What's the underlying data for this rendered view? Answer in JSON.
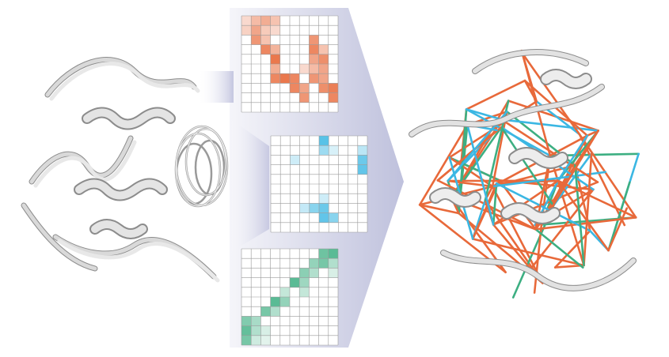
{
  "colors": {
    "orange": "#e8693a",
    "blue": "#3bb7e3",
    "green": "#3daf82",
    "cartoon": "#d9d9d9",
    "cartoon_edge": "#8c8c8c",
    "funnel_dark": "#a9acd1",
    "funnel_light": "#e6e7f2",
    "grid_line": "#9a9a9a"
  },
  "left_panel": {
    "icon": "protein-ensemble-cartoon"
  },
  "right_panel": {
    "icon": "protein-with-contact-network"
  },
  "matrices": [
    {
      "name": "orange-contact-map",
      "color": "orange",
      "size": 10,
      "cells": [
        [
          0,
          0,
          0.25
        ],
        [
          1,
          0,
          0.45
        ],
        [
          2,
          0,
          0.55
        ],
        [
          3,
          0,
          0.4
        ],
        [
          0,
          1,
          0.3
        ],
        [
          1,
          1,
          0.6
        ],
        [
          2,
          1,
          0.35
        ],
        [
          3,
          1,
          0.25
        ],
        [
          1,
          2,
          0.7
        ],
        [
          2,
          2,
          0.4
        ],
        [
          7,
          2,
          0.7
        ],
        [
          2,
          3,
          0.8
        ],
        [
          3,
          3,
          0.5
        ],
        [
          7,
          3,
          0.8
        ],
        [
          8,
          3,
          0.4
        ],
        [
          3,
          4,
          0.9
        ],
        [
          7,
          4,
          0.6
        ],
        [
          8,
          4,
          0.75
        ],
        [
          3,
          5,
          0.55
        ],
        [
          6,
          5,
          0.25
        ],
        [
          7,
          5,
          0.45
        ],
        [
          8,
          5,
          0.6
        ],
        [
          3,
          6,
          0.8
        ],
        [
          4,
          6,
          0.9
        ],
        [
          5,
          6,
          0.8
        ],
        [
          7,
          6,
          0.7
        ],
        [
          8,
          6,
          0.6
        ],
        [
          5,
          7,
          0.8
        ],
        [
          6,
          7,
          0.6
        ],
        [
          8,
          7,
          0.75
        ],
        [
          9,
          7,
          0.85
        ],
        [
          6,
          8,
          0.7
        ],
        [
          9,
          8,
          0.8
        ]
      ]
    },
    {
      "name": "blue-contact-map",
      "color": "blue",
      "size": 10,
      "cells": [
        [
          5,
          0,
          0.85
        ],
        [
          5,
          1,
          0.5
        ],
        [
          6,
          1,
          0.2
        ],
        [
          9,
          1,
          0.35
        ],
        [
          2,
          2,
          0.25
        ],
        [
          9,
          2,
          0.75
        ],
        [
          9,
          3,
          0.8
        ],
        [
          5,
          6,
          0.25
        ],
        [
          3,
          7,
          0.3
        ],
        [
          4,
          7,
          0.6
        ],
        [
          5,
          7,
          0.75
        ],
        [
          5,
          8,
          0.8
        ],
        [
          6,
          8,
          0.6
        ]
      ]
    },
    {
      "name": "green-contact-map",
      "color": "green",
      "size": 10,
      "cells": [
        [
          8,
          0,
          0.75
        ],
        [
          9,
          0,
          0.85
        ],
        [
          7,
          1,
          0.55
        ],
        [
          8,
          1,
          0.7
        ],
        [
          9,
          1,
          0.4
        ],
        [
          6,
          2,
          0.6
        ],
        [
          7,
          2,
          0.4
        ],
        [
          9,
          2,
          0.2
        ],
        [
          5,
          3,
          0.85
        ],
        [
          6,
          3,
          0.5
        ],
        [
          4,
          4,
          0.3
        ],
        [
          6,
          4,
          0.3
        ],
        [
          3,
          5,
          0.85
        ],
        [
          4,
          5,
          0.55
        ],
        [
          2,
          6,
          0.7
        ],
        [
          3,
          6,
          0.4
        ],
        [
          0,
          7,
          0.65
        ],
        [
          1,
          7,
          0.45
        ],
        [
          0,
          8,
          0.8
        ],
        [
          1,
          8,
          0.4
        ],
        [
          2,
          8,
          0.2
        ],
        [
          0,
          9,
          0.7
        ],
        [
          1,
          9,
          0.25
        ],
        [
          2,
          9,
          0.15
        ]
      ]
    }
  ]
}
